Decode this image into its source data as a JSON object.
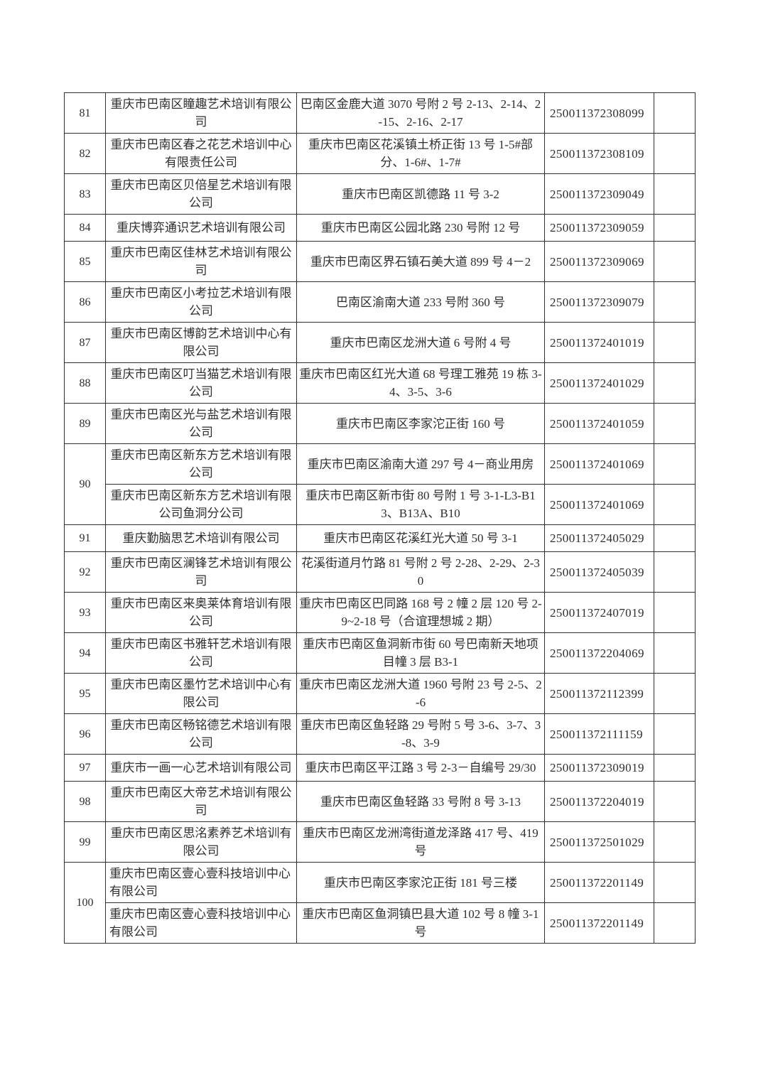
{
  "page": {
    "background_color": "#ffffff",
    "text_color": "#2e2e2e",
    "grid_color": "#2f2f2f"
  },
  "table": {
    "rows": [
      {
        "no": "81",
        "entries": [
          {
            "name": "重庆市巴南区瞳趣艺术培训有限公司",
            "address": "巴南区金鹿大道 3070 号附 2 号 2-13、2-14、2-15、2-16、2-17",
            "code": "250011372308099",
            "remark": ""
          }
        ]
      },
      {
        "no": "82",
        "entries": [
          {
            "name": "重庆市巴南区春之花艺术培训中心有限责任公司",
            "address": "重庆市巴南区花溪镇土桥正街 13 号 1-5#部分、1-6#、1-7#",
            "code": "250011372308109",
            "remark": ""
          }
        ]
      },
      {
        "no": "83",
        "entries": [
          {
            "name": "重庆市巴南区贝倍星艺术培训有限公司",
            "address": "重庆市巴南区凯德路 11 号 3-2",
            "code": "250011372309049",
            "remark": ""
          }
        ]
      },
      {
        "no": "84",
        "entries": [
          {
            "name": "重庆博弈通识艺术培训有限公司",
            "address": "重庆市巴南区公园北路 230 号附 12 号",
            "code": "250011372309059",
            "remark": ""
          }
        ]
      },
      {
        "no": "85",
        "entries": [
          {
            "name": "重庆市巴南区佳林艺术培训有限公司",
            "address": "重庆市巴南区界石镇石美大道 899 号 4－2",
            "code": "250011372309069",
            "remark": ""
          }
        ]
      },
      {
        "no": "86",
        "entries": [
          {
            "name": "重庆市巴南区小考拉艺术培训有限公司",
            "address": "巴南区渝南大道 233 号附 360 号",
            "code": "250011372309079",
            "remark": ""
          }
        ]
      },
      {
        "no": "87",
        "entries": [
          {
            "name": "重庆市巴南区博韵艺术培训中心有限公司",
            "address": "重庆市巴南区龙洲大道 6 号附 4 号",
            "code": "250011372401019",
            "remark": ""
          }
        ]
      },
      {
        "no": "88",
        "entries": [
          {
            "name": "重庆市巴南区叮当猫艺术培训有限公司",
            "address": "重庆市巴南区红光大道 68 号理工雅苑 19 栋 3-4、3-5、3-6",
            "code": "250011372401029",
            "remark": ""
          }
        ]
      },
      {
        "no": "89",
        "entries": [
          {
            "name": "重庆市巴南区光与盐艺术培训有限公司",
            "address": "重庆市巴南区李家沱正街 160 号",
            "code": "250011372401059",
            "remark": ""
          }
        ]
      },
      {
        "no": "90",
        "entries": [
          {
            "name": "重庆市巴南区新东方艺术培训有限公司",
            "address": "重庆市巴南区渝南大道 297 号 4－商业用房",
            "code": "250011372401069",
            "remark": ""
          },
          {
            "name": "重庆市巴南区新东方艺术培训有限公司鱼洞分公司",
            "address": "重庆市巴南区新市街 80 号附 1 号 3-1-L3-B13、B13A、B10",
            "code": "250011372401069",
            "remark": ""
          }
        ]
      },
      {
        "no": "91",
        "entries": [
          {
            "name": "重庆勤脑思艺术培训有限公司",
            "address": "重庆市巴南区花溪红光大道 50 号 3-1",
            "code": "250011372405029",
            "remark": ""
          }
        ]
      },
      {
        "no": "92",
        "entries": [
          {
            "name": "重庆市巴南区澜锋艺术培训有限公司",
            "address": "花溪街道月竹路 81 号附 2 号 2-28、2-29、2-30",
            "code": "250011372405039",
            "remark": ""
          }
        ]
      },
      {
        "no": "93",
        "entries": [
          {
            "name": "重庆市巴南区来奥莱体育培训有限公司",
            "address": "重庆市巴南区巴同路 168 号 2 幢 2 层 120 号 2-9~2-18 号（合谊理想城 2 期）",
            "code": "250011372407019",
            "remark": ""
          }
        ]
      },
      {
        "no": "94",
        "entries": [
          {
            "name": "重庆市巴南区书雅轩艺术培训有限公司",
            "address": "重庆市巴南区鱼洞新市街 60 号巴南新天地项目幢 3 层 B3-1",
            "code": "250011372204069",
            "remark": ""
          }
        ]
      },
      {
        "no": "95",
        "entries": [
          {
            "name": "重庆市巴南区墨竹艺术培训中心有限公司",
            "address": "重庆市巴南区龙洲大道 1960 号附 23 号 2-5、2-6",
            "code": "250011372112399",
            "remark": ""
          }
        ]
      },
      {
        "no": "96",
        "entries": [
          {
            "name": "重庆市巴南区畅铭德艺术培训有限公司",
            "address": "重庆市巴南区鱼轻路 29 号附 5 号 3-6、3-7、3-8、3-9",
            "code": "250011372111159",
            "remark": ""
          }
        ]
      },
      {
        "no": "97",
        "entries": [
          {
            "name": "重庆市一画一心艺术培训有限公司",
            "address": "重庆市巴南区平江路 3 号 2-3－自编号 29/30",
            "code": "250011372309019",
            "remark": ""
          }
        ]
      },
      {
        "no": "98",
        "entries": [
          {
            "name": "重庆市巴南区大帝艺术培训有限公司",
            "address": "重庆市巴南区鱼轻路 33 号附 8 号 3-13",
            "code": "250011372204019",
            "remark": ""
          }
        ]
      },
      {
        "no": "99",
        "entries": [
          {
            "name": "重庆市巴南区思洺素养艺术培训有限公司",
            "address": "重庆市巴南区龙洲湾街道龙泽路 417 号、419 号",
            "code": "250011372501029",
            "remark": ""
          }
        ]
      },
      {
        "no": "100",
        "entries": [
          {
            "name": "重庆市巴南区壹心壹科技培训中心有限公司",
            "address": "重庆市巴南区李家沱正街 181 号三楼",
            "code": "250011372201149",
            "remark": "",
            "name_align": "left"
          },
          {
            "name": "重庆市巴南区壹心壹科技培训中心有限公司",
            "address": "重庆市巴南区鱼洞镇巴县大道 102 号 8 幢 3-1 号",
            "code": "250011372201149",
            "remark": "",
            "name_align": "left"
          }
        ]
      }
    ]
  }
}
